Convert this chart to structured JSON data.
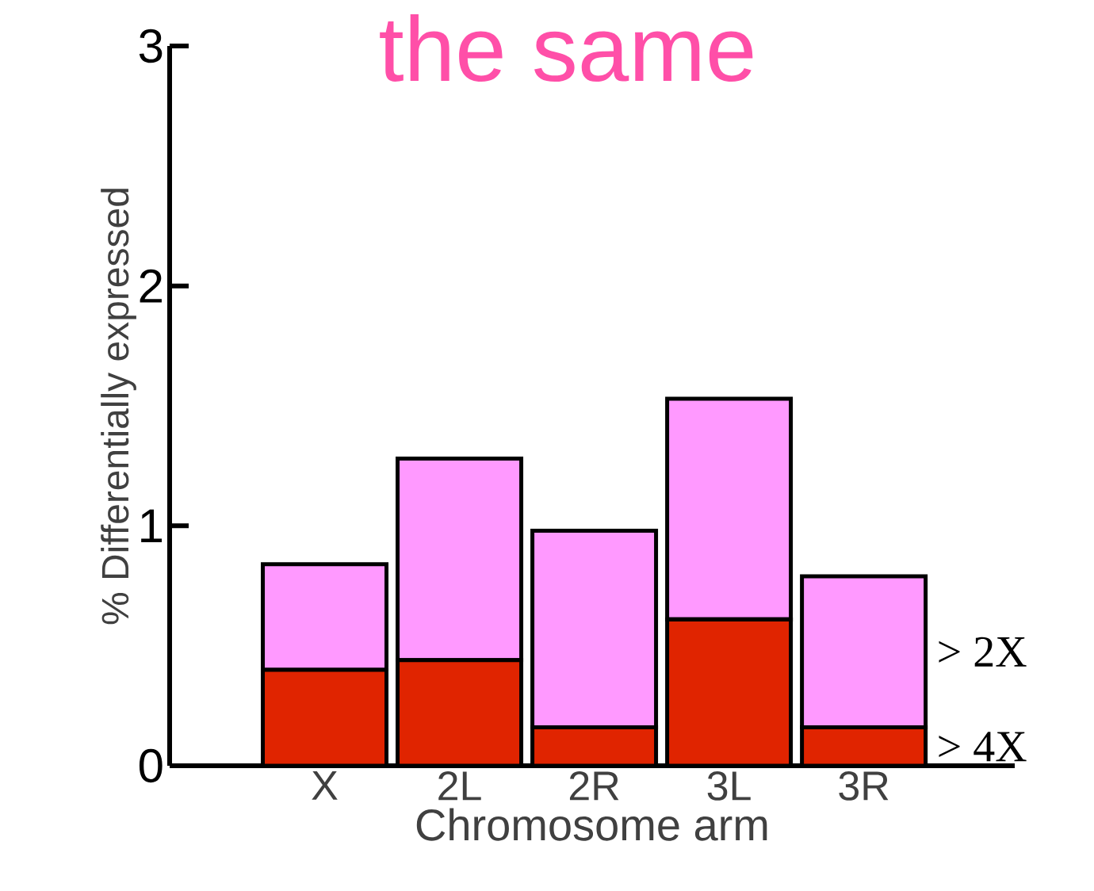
{
  "chart_data": {
    "type": "bar",
    "title": "the same",
    "xlabel": "Chromosome arm",
    "ylabel": "% Differentially expressed",
    "categories": [
      "X",
      "2L",
      "2R",
      "3L",
      "3R"
    ],
    "stacked": true,
    "series": [
      {
        "name": "> 4X",
        "color": "#e02400",
        "values": [
          0.4,
          0.44,
          0.16,
          0.61,
          0.16
        ]
      },
      {
        "name": "> 2X",
        "color": "#ff99ff",
        "values": [
          0.44,
          0.84,
          0.82,
          0.92,
          0.63
        ]
      }
    ],
    "ylim": [
      0,
      3
    ],
    "yticks": [
      0,
      1,
      2,
      3
    ],
    "grid": false,
    "legend": false
  }
}
